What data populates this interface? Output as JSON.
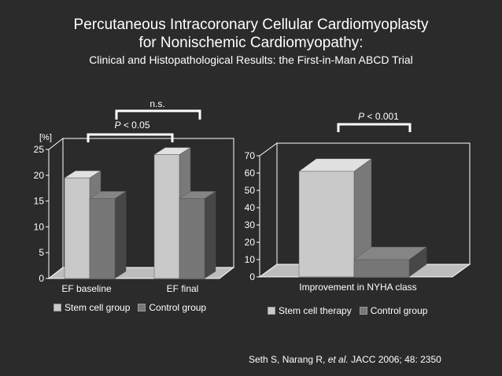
{
  "title": {
    "line1": "Percutaneous Intracoronary Cellular Cardiomyoplasty",
    "line2": "for Nonischemic Cardiomyopathy:",
    "line3": "Clinical and Histopathological Results: the First-in-Man ABCD Trial"
  },
  "colors": {
    "background": "#2b2b2b",
    "stem": "#c9c9c9",
    "control": "#777777",
    "frame": "#ffffff"
  },
  "chart_data": [
    {
      "type": "bar",
      "ylabel": "[%]",
      "ylim": [
        0,
        25
      ],
      "yticks": [
        "0",
        "5",
        "10",
        "15",
        "20",
        "25"
      ],
      "categories": [
        "EF baseline",
        "EF final"
      ],
      "series": [
        {
          "name": "Stem cell group",
          "values": [
            19.5,
            24
          ]
        },
        {
          "name": "Control group",
          "values": [
            15.5,
            15.5
          ]
        }
      ],
      "annotations": [
        {
          "text": "n.s.",
          "between": [
            "EF baseline",
            "EF final"
          ]
        },
        {
          "text": "P < 0.05",
          "between": [
            "EF baseline",
            "EF final"
          ]
        }
      ],
      "legend": [
        "Stem cell group",
        "Control group"
      ],
      "grid": false
    },
    {
      "type": "bar",
      "ylim": [
        0,
        70
      ],
      "yticks": [
        "0",
        "10",
        "20",
        "30",
        "40",
        "50",
        "60",
        "70"
      ],
      "categories": [
        "Improvement in NYHA class"
      ],
      "series": [
        {
          "name": "Stem cell therapy",
          "values": [
            61
          ]
        },
        {
          "name": "Control group",
          "values": [
            10
          ]
        }
      ],
      "annotations": [
        {
          "text": "P < 0.001"
        }
      ],
      "legend": [
        "Stem cell therapy",
        "Control group"
      ],
      "grid": false
    }
  ],
  "annotations": {
    "ns": "n.s.",
    "p1_italic": "P",
    "p1_rest": " < 0.05",
    "p2_italic": "P",
    "p2_rest": " < 0.001"
  },
  "citation": {
    "authors": "Seth S, Narang R, ",
    "etal": "et al.",
    "ref": " JACC 2006; 48: 2350"
  }
}
